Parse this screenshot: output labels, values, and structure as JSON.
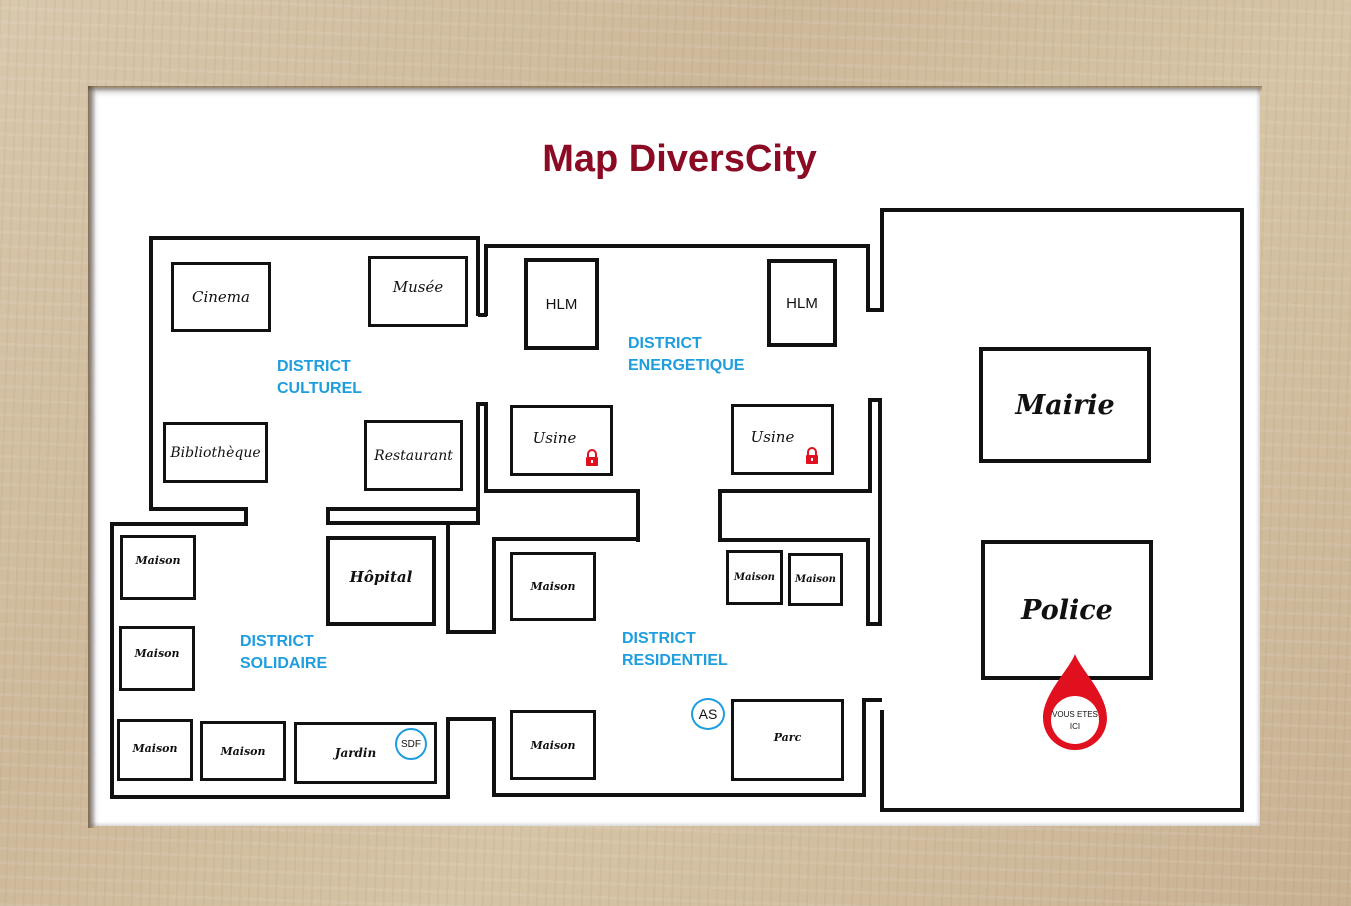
{
  "title": "Map DiversCity",
  "colors": {
    "title": "#8b0a24",
    "district": "#1e9ddf",
    "pin": "#e0101e",
    "lock": "#e0101e"
  },
  "districts": {
    "culturel": "DISTRICT\nCULTUREL",
    "energetique": "DISTRICT\nENERGETIQUE",
    "solidaire": "DISTRICT\nSOLIDAIRE",
    "residentiel": "DISTRICT\nRESIDENTIEL"
  },
  "buildings": {
    "cinema": "Cinema",
    "musee": "Musée",
    "bibliotheque": "Bibliothèque",
    "restaurant": "Restaurant",
    "hlm_1": "HLM",
    "hlm_2": "HLM",
    "usine_1": "Usine",
    "usine_2": "Usine",
    "hopital": "Hôpital",
    "maison": "Maison",
    "jardin": "Jardin",
    "parc": "Parc",
    "mairie": "Mairie",
    "police": "Police"
  },
  "badges": {
    "sdf": "SDF",
    "as": "AS"
  },
  "you_are_here": "VOUS ETES ICI",
  "icons": [
    "lock-icon",
    "location-pin-icon"
  ]
}
